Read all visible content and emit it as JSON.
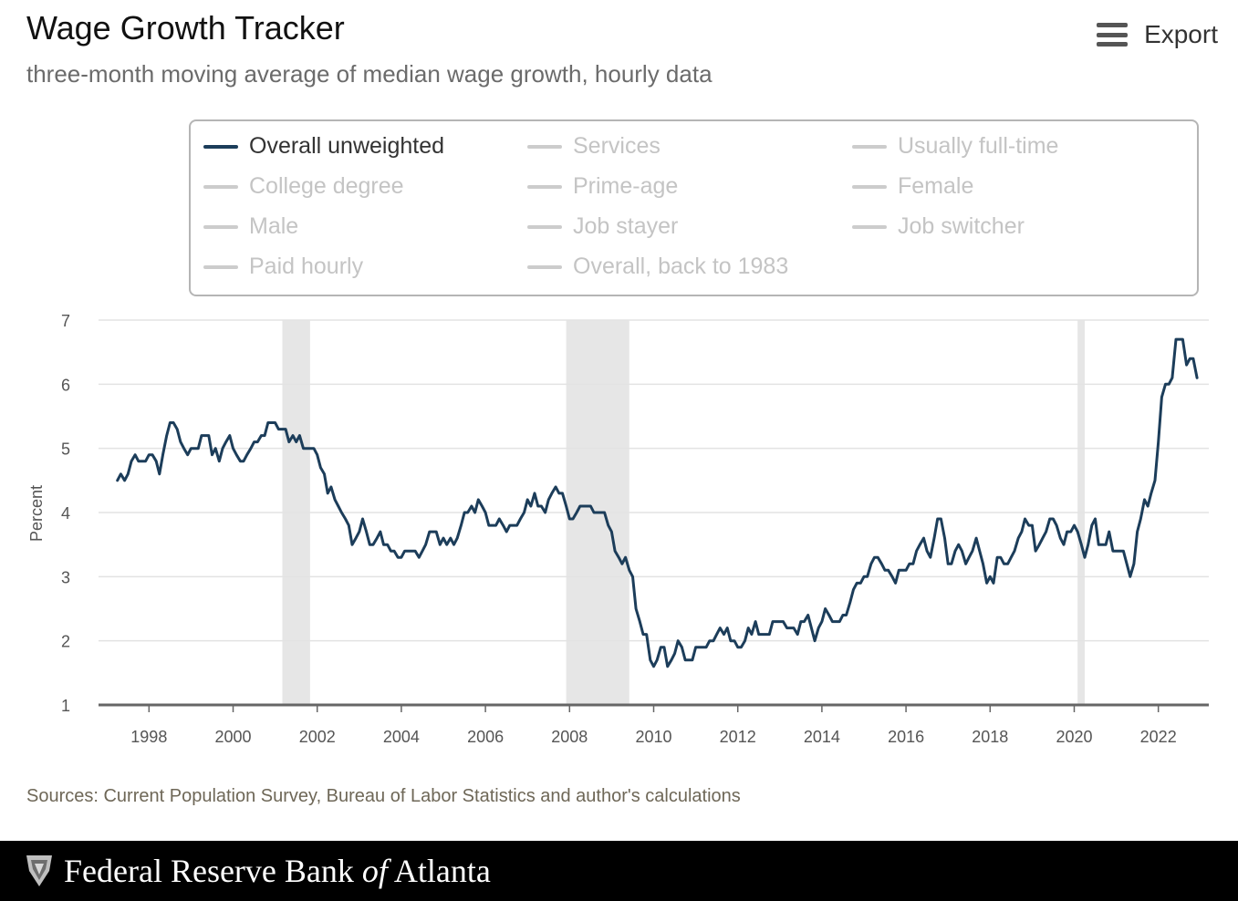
{
  "header": {
    "title": "Wage Growth Tracker",
    "subtitle": "three-month moving average of median wage growth, hourly data",
    "export_label": "Export",
    "export_icon": "hamburger-menu-icon"
  },
  "legend": {
    "items": [
      {
        "label": "Overall unweighted",
        "active": true
      },
      {
        "label": "Services",
        "active": false
      },
      {
        "label": "Usually full-time",
        "active": false
      },
      {
        "label": "College degree",
        "active": false
      },
      {
        "label": "Prime-age",
        "active": false
      },
      {
        "label": "Female",
        "active": false
      },
      {
        "label": "Male",
        "active": false
      },
      {
        "label": "Job stayer",
        "active": false
      },
      {
        "label": "Job switcher",
        "active": false
      },
      {
        "label": "Paid hourly",
        "active": false
      },
      {
        "label": "Overall, back to 1983",
        "active": false
      }
    ]
  },
  "chart_data": {
    "type": "line",
    "ylabel": "Percent",
    "xlabel": "",
    "ylim": [
      1,
      7
    ],
    "xlim": [
      1996.8,
      2023.2
    ],
    "yticks": [
      1,
      2,
      3,
      4,
      5,
      6,
      7
    ],
    "xticks": [
      1998,
      2000,
      2002,
      2004,
      2006,
      2008,
      2010,
      2012,
      2014,
      2016,
      2018,
      2020,
      2022
    ],
    "grid": true,
    "line_color": "#1c3d5a",
    "recession_color": "#e6e6e6",
    "recessions": [
      [
        2001.17,
        2001.83
      ],
      [
        2007.92,
        2009.42
      ],
      [
        2020.08,
        2020.25
      ]
    ],
    "series": [
      {
        "name": "Overall unweighted",
        "x": [
          1997.25,
          1997.33,
          1997.42,
          1997.5,
          1997.58,
          1997.67,
          1997.75,
          1997.83,
          1997.92,
          1998.0,
          1998.08,
          1998.17,
          1998.25,
          1998.33,
          1998.42,
          1998.5,
          1998.58,
          1998.67,
          1998.75,
          1998.83,
          1998.92,
          1999.0,
          1999.08,
          1999.17,
          1999.25,
          1999.33,
          1999.42,
          1999.5,
          1999.58,
          1999.67,
          1999.75,
          1999.83,
          1999.92,
          2000.0,
          2000.08,
          2000.17,
          2000.25,
          2000.33,
          2000.42,
          2000.5,
          2000.58,
          2000.67,
          2000.75,
          2000.83,
          2000.92,
          2001.0,
          2001.08,
          2001.17,
          2001.25,
          2001.33,
          2001.42,
          2001.5,
          2001.58,
          2001.67,
          2001.75,
          2001.83,
          2001.92,
          2002.0,
          2002.08,
          2002.17,
          2002.25,
          2002.33,
          2002.42,
          2002.5,
          2002.58,
          2002.67,
          2002.75,
          2002.83,
          2002.92,
          2003.0,
          2003.08,
          2003.17,
          2003.25,
          2003.33,
          2003.42,
          2003.5,
          2003.58,
          2003.67,
          2003.75,
          2003.83,
          2003.92,
          2004.0,
          2004.08,
          2004.17,
          2004.25,
          2004.33,
          2004.42,
          2004.5,
          2004.58,
          2004.67,
          2004.75,
          2004.83,
          2004.92,
          2005.0,
          2005.08,
          2005.17,
          2005.25,
          2005.33,
          2005.42,
          2005.5,
          2005.58,
          2005.67,
          2005.75,
          2005.83,
          2005.92,
          2006.0,
          2006.08,
          2006.17,
          2006.25,
          2006.33,
          2006.42,
          2006.5,
          2006.58,
          2006.67,
          2006.75,
          2006.83,
          2006.92,
          2007.0,
          2007.08,
          2007.17,
          2007.25,
          2007.33,
          2007.42,
          2007.5,
          2007.58,
          2007.67,
          2007.75,
          2007.83,
          2007.92,
          2008.0,
          2008.08,
          2008.17,
          2008.25,
          2008.33,
          2008.42,
          2008.5,
          2008.58,
          2008.67,
          2008.75,
          2008.83,
          2008.92,
          2009.0,
          2009.08,
          2009.17,
          2009.25,
          2009.33,
          2009.42,
          2009.5,
          2009.58,
          2009.67,
          2009.75,
          2009.83,
          2009.92,
          2010.0,
          2010.08,
          2010.17,
          2010.25,
          2010.33,
          2010.42,
          2010.5,
          2010.58,
          2010.67,
          2010.75,
          2010.83,
          2010.92,
          2011.0,
          2011.08,
          2011.17,
          2011.25,
          2011.33,
          2011.42,
          2011.5,
          2011.58,
          2011.67,
          2011.75,
          2011.83,
          2011.92,
          2012.0,
          2012.08,
          2012.17,
          2012.25,
          2012.33,
          2012.42,
          2012.5,
          2012.58,
          2012.67,
          2012.75,
          2012.83,
          2012.92,
          2013.0,
          2013.08,
          2013.17,
          2013.25,
          2013.33,
          2013.42,
          2013.5,
          2013.58,
          2013.67,
          2013.75,
          2013.83,
          2013.92,
          2014.0,
          2014.08,
          2014.17,
          2014.25,
          2014.33,
          2014.42,
          2014.5,
          2014.58,
          2014.67,
          2014.75,
          2014.83,
          2014.92,
          2015.0,
          2015.08,
          2015.17,
          2015.25,
          2015.33,
          2015.42,
          2015.5,
          2015.58,
          2015.67,
          2015.75,
          2015.83,
          2015.92,
          2016.0,
          2016.08,
          2016.17,
          2016.25,
          2016.33,
          2016.42,
          2016.5,
          2016.58,
          2016.67,
          2016.75,
          2016.83,
          2016.92,
          2017.0,
          2017.08,
          2017.17,
          2017.25,
          2017.33,
          2017.42,
          2017.5,
          2017.58,
          2017.67,
          2017.75,
          2017.83,
          2017.92,
          2018.0,
          2018.08,
          2018.17,
          2018.25,
          2018.33,
          2018.42,
          2018.5,
          2018.58,
          2018.67,
          2018.75,
          2018.83,
          2018.92,
          2019.0,
          2019.08,
          2019.17,
          2019.25,
          2019.33,
          2019.42,
          2019.5,
          2019.58,
          2019.67,
          2019.75,
          2019.83,
          2019.92,
          2020.0,
          2020.08,
          2020.17,
          2020.25,
          2020.33,
          2020.42,
          2020.5,
          2020.58,
          2020.67,
          2020.75,
          2020.83,
          2020.92,
          2021.0,
          2021.08,
          2021.17,
          2021.25,
          2021.33,
          2021.42,
          2021.5,
          2021.58,
          2021.67,
          2021.75,
          2021.83,
          2021.92,
          2022.0,
          2022.08,
          2022.17,
          2022.25,
          2022.33,
          2022.42,
          2022.5,
          2022.58,
          2022.67,
          2022.75,
          2022.83,
          2022.92
        ],
        "values": [
          4.5,
          4.6,
          4.5,
          4.6,
          4.8,
          4.9,
          4.8,
          4.8,
          4.8,
          4.9,
          4.9,
          4.8,
          4.6,
          4.9,
          5.2,
          5.4,
          5.4,
          5.3,
          5.1,
          5.0,
          4.9,
          5.0,
          5.0,
          5.0,
          5.2,
          5.2,
          5.2,
          4.9,
          5.0,
          4.8,
          5.0,
          5.1,
          5.2,
          5.0,
          4.9,
          4.8,
          4.8,
          4.9,
          5.0,
          5.1,
          5.1,
          5.2,
          5.2,
          5.4,
          5.4,
          5.4,
          5.3,
          5.3,
          5.3,
          5.1,
          5.2,
          5.1,
          5.2,
          5.0,
          5.0,
          5.0,
          5.0,
          4.9,
          4.7,
          4.6,
          4.3,
          4.4,
          4.2,
          4.1,
          4.0,
          3.9,
          3.8,
          3.5,
          3.6,
          3.7,
          3.9,
          3.7,
          3.5,
          3.5,
          3.6,
          3.7,
          3.5,
          3.5,
          3.4,
          3.4,
          3.3,
          3.3,
          3.4,
          3.4,
          3.4,
          3.4,
          3.3,
          3.4,
          3.5,
          3.7,
          3.7,
          3.7,
          3.5,
          3.6,
          3.5,
          3.6,
          3.5,
          3.6,
          3.8,
          4.0,
          4.0,
          4.1,
          4.0,
          4.2,
          4.1,
          4.0,
          3.8,
          3.8,
          3.8,
          3.9,
          3.8,
          3.7,
          3.8,
          3.8,
          3.8,
          3.9,
          4.0,
          4.2,
          4.1,
          4.3,
          4.1,
          4.1,
          4.0,
          4.2,
          4.3,
          4.4,
          4.3,
          4.3,
          4.1,
          3.9,
          3.9,
          4.0,
          4.1,
          4.1,
          4.1,
          4.1,
          4.0,
          4.0,
          4.0,
          4.0,
          3.8,
          3.7,
          3.4,
          3.3,
          3.2,
          3.3,
          3.1,
          3.0,
          2.5,
          2.3,
          2.1,
          2.1,
          1.7,
          1.6,
          1.7,
          1.9,
          1.9,
          1.6,
          1.7,
          1.8,
          2.0,
          1.9,
          1.7,
          1.7,
          1.7,
          1.9,
          1.9,
          1.9,
          1.9,
          2.0,
          2.0,
          2.1,
          2.2,
          2.1,
          2.2,
          2.0,
          2.0,
          1.9,
          1.9,
          2.0,
          2.2,
          2.1,
          2.3,
          2.1,
          2.1,
          2.1,
          2.1,
          2.3,
          2.3,
          2.3,
          2.3,
          2.2,
          2.2,
          2.2,
          2.1,
          2.3,
          2.3,
          2.4,
          2.2,
          2.0,
          2.2,
          2.3,
          2.5,
          2.4,
          2.3,
          2.3,
          2.3,
          2.4,
          2.4,
          2.6,
          2.8,
          2.9,
          2.9,
          3.0,
          3.0,
          3.2,
          3.3,
          3.3,
          3.2,
          3.1,
          3.1,
          3.0,
          2.9,
          3.1,
          3.1,
          3.1,
          3.2,
          3.2,
          3.4,
          3.5,
          3.6,
          3.4,
          3.3,
          3.6,
          3.9,
          3.9,
          3.6,
          3.2,
          3.2,
          3.4,
          3.5,
          3.4,
          3.2,
          3.3,
          3.4,
          3.6,
          3.4,
          3.2,
          2.9,
          3.0,
          2.9,
          3.3,
          3.3,
          3.2,
          3.2,
          3.3,
          3.4,
          3.6,
          3.7,
          3.9,
          3.8,
          3.8,
          3.4,
          3.5,
          3.6,
          3.7,
          3.9,
          3.9,
          3.8,
          3.6,
          3.5,
          3.7,
          3.7,
          3.8,
          3.7,
          3.5,
          3.3,
          3.5,
          3.8,
          3.9,
          3.5,
          3.5,
          3.5,
          3.7,
          3.4,
          3.4,
          3.4,
          3.4,
          3.2,
          3.0,
          3.2,
          3.7,
          3.9,
          4.2,
          4.1,
          4.3,
          4.5,
          5.1,
          5.8,
          6.0,
          6.0,
          6.1,
          6.7,
          6.7,
          6.7,
          6.3,
          6.4,
          6.4,
          6.1
        ]
      }
    ]
  },
  "footer": {
    "source": "Sources: Current Population Survey, Bureau of Labor Statistics and author's calculations",
    "bank_name_part1": "Federal Reserve Bank ",
    "bank_name_of": "of",
    "bank_name_part2": " Atlanta",
    "seal_icon": "eagle-seal-icon"
  }
}
